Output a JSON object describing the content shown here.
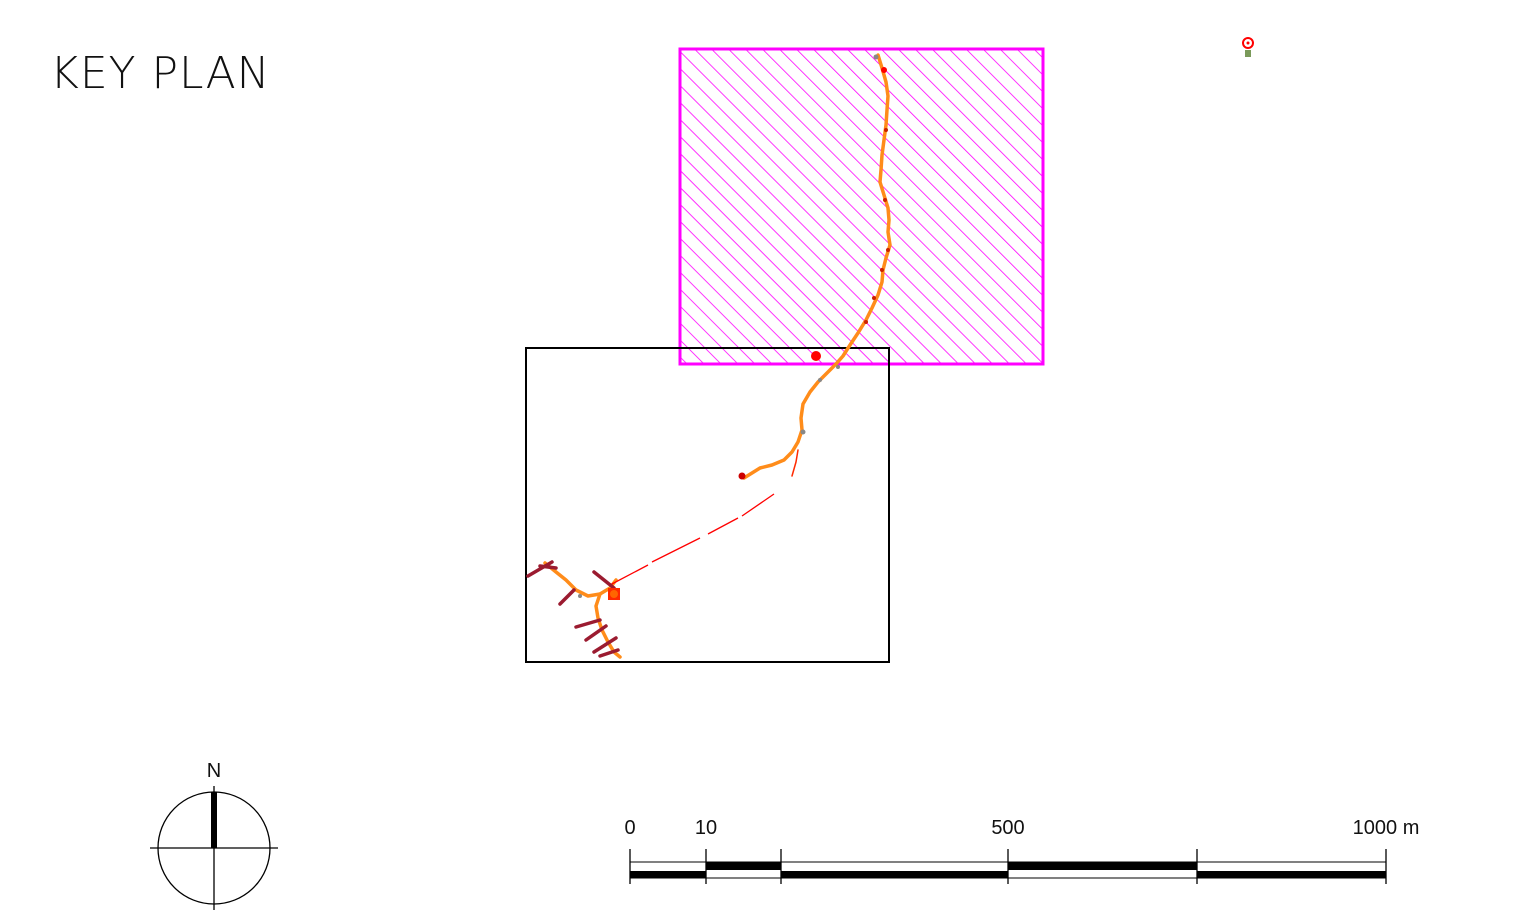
{
  "title": "KEY PLAN",
  "north_arrow": {
    "label": "N",
    "icon": "north-arrow-icon"
  },
  "scale_bar": {
    "ticks": [
      "0",
      "10",
      "500",
      "1000 m"
    ],
    "unit": "m"
  },
  "colors": {
    "highlight_sheet": "#ff00ff",
    "route": "#ff8c1a",
    "route_dark": "#ff6600",
    "marker_red": "#ff0000",
    "crossing": "#9b1b30",
    "frame": "#000000"
  },
  "icons": {
    "location_pin": "location-pin-icon"
  }
}
